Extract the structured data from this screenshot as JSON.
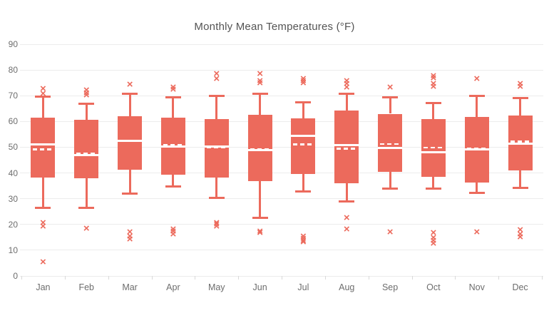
{
  "page": {
    "background": "#ffffff"
  },
  "chart_data": {
    "type": "boxplot",
    "title": "Monthly Mean Temperatures (°F)",
    "grid": "horizontal",
    "legend": "none",
    "marker_glyph": "×",
    "colors": {
      "box_fill": "#EC6A5C",
      "whisker": "#EC6A5C",
      "outlier": "#EC6A5C",
      "median_line": "#FFFFFF",
      "mean_line": "#FFFFFF",
      "gridline": "#ECECEC",
      "axis_tick": "#D9D9D9",
      "axis_label": "#6D6D6D",
      "title_color": "#545454"
    },
    "y_axis": {
      "min": 0,
      "max": 90,
      "tick_step": 10,
      "ticks": [
        0,
        10,
        20,
        30,
        40,
        50,
        60,
        70,
        80,
        90
      ]
    },
    "x_axis": {
      "categories": [
        "Jan",
        "Feb",
        "Mar",
        "Apr",
        "May",
        "Jun",
        "Jul",
        "Aug",
        "Sep",
        "Oct",
        "Nov",
        "Dec"
      ]
    },
    "series": [
      {
        "label": "Jan",
        "whisker_low": 26.4,
        "q1": 38.2,
        "median": 51.1,
        "mean": 49.2,
        "q3": 61.5,
        "whisker_high": 69.7,
        "outliers": [
          72.5,
          70.5,
          20.5,
          19,
          5.2
        ]
      },
      {
        "label": "Feb",
        "whisker_low": 26.3,
        "q1": 37.9,
        "median": 47,
        "mean": 47.6,
        "q3": 60.7,
        "whisker_high": 67,
        "outliers": [
          72,
          71,
          70,
          18.3
        ]
      },
      {
        "label": "Mar",
        "whisker_low": 31.8,
        "q1": 41.4,
        "median": 52.4,
        "mean": 52.4,
        "q3": 62.1,
        "whisker_high": 71,
        "outliers": [
          74.2,
          16.8,
          15.3,
          14
        ]
      },
      {
        "label": "Apr",
        "whisker_low": 34.5,
        "q1": 39.4,
        "median": 50.3,
        "mean": 50.8,
        "q3": 61.5,
        "whisker_high": 69.6,
        "outliers": [
          73,
          72.3,
          18,
          17.2,
          16
        ]
      },
      {
        "label": "May",
        "whisker_low": 30.2,
        "q1": 38.2,
        "median": 50.4,
        "mean": 50,
        "q3": 60.9,
        "whisker_high": 70,
        "outliers": [
          78.3,
          76.3,
          20.6,
          19.9,
          19.2
        ]
      },
      {
        "label": "Jun",
        "whisker_low": 22.4,
        "q1": 36.8,
        "median": 49,
        "mean": 49.2,
        "q3": 62.7,
        "whisker_high": 70.8,
        "outliers": [
          78.4,
          75.6,
          74.7,
          17.2,
          16.5
        ]
      },
      {
        "label": "Jul",
        "whisker_low": 32.6,
        "q1": 39.6,
        "median": 54.3,
        "mean": 51.1,
        "q3": 61.2,
        "whisker_high": 67.6,
        "outliers": [
          76.3,
          75.5,
          74.8,
          15.2,
          14.4,
          13.6,
          13
        ]
      },
      {
        "label": "Aug",
        "whisker_low": 28.7,
        "q1": 35.9,
        "median": 50.8,
        "mean": 49.5,
        "q3": 64.3,
        "whisker_high": 70.8,
        "outliers": [
          75.5,
          74.5,
          73.2,
          22.3,
          18
        ]
      },
      {
        "label": "Sep",
        "whisker_low": 33.7,
        "q1": 40.4,
        "median": 49.7,
        "mean": 51.3,
        "q3": 63,
        "whisker_high": 69.6,
        "outliers": [
          73.2,
          17
        ]
      },
      {
        "label": "Oct",
        "whisker_low": 33.8,
        "q1": 38.4,
        "median": 48.1,
        "mean": 49.9,
        "q3": 61,
        "whisker_high": 67.4,
        "outliers": [
          77.5,
          76.7,
          74.6,
          73.3,
          16.5,
          14.6,
          13.5,
          12.4
        ]
      },
      {
        "label": "Nov",
        "whisker_low": 32.1,
        "q1": 36.2,
        "median": 49.2,
        "mean": 49.6,
        "q3": 61.8,
        "whisker_high": 70,
        "outliers": [
          76.4,
          17
        ]
      },
      {
        "label": "Dec",
        "whisker_low": 34.2,
        "q1": 41,
        "median": 51.3,
        "mean": 52.2,
        "q3": 62.3,
        "whisker_high": 69.2,
        "outliers": [
          74.4,
          73.3,
          17.6,
          16.1,
          14.9
        ]
      }
    ]
  }
}
